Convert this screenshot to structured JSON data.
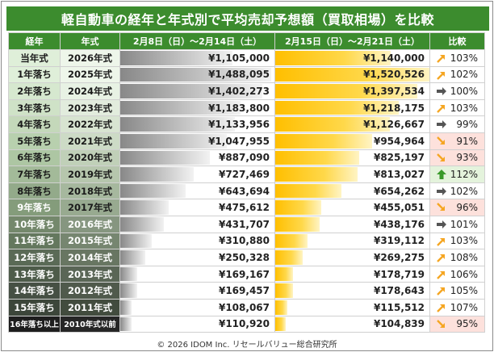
{
  "title": "軽自動車の経年と年式別で平均売却予想額（買取相場）を比較",
  "chart_data": {
    "type": "table",
    "columns": [
      "経年",
      "年式",
      "2月8日（日）～2月14日（土）",
      "2月15日（日）～2月21日（土）",
      "比較"
    ],
    "rows": [
      {
        "age": "当年式",
        "year": "2026年式",
        "p1": 1105000,
        "p2": 1140000,
        "p1_label": "¥1,105,000",
        "p2_label": "¥1,140,000",
        "ratio": "103%",
        "trend": "up"
      },
      {
        "age": "1年落ち",
        "year": "2025年式",
        "p1": 1488095,
        "p2": 1520526,
        "p1_label": "¥1,488,095",
        "p2_label": "¥1,520,526",
        "ratio": "102%",
        "trend": "up"
      },
      {
        "age": "2年落ち",
        "year": "2024年式",
        "p1": 1402273,
        "p2": 1397534,
        "p1_label": "¥1,402,273",
        "p2_label": "¥1,397,534",
        "ratio": "100%",
        "trend": "flat"
      },
      {
        "age": "3年落ち",
        "year": "2023年式",
        "p1": 1183800,
        "p2": 1218175,
        "p1_label": "¥1,183,800",
        "p2_label": "¥1,218,175",
        "ratio": "103%",
        "trend": "up"
      },
      {
        "age": "4年落ち",
        "year": "2022年式",
        "p1": 1133956,
        "p2": 1126667,
        "p1_label": "¥1,133,956",
        "p2_label": "¥1,126,667",
        "ratio": "99%",
        "trend": "flat"
      },
      {
        "age": "5年落ち",
        "year": "2021年式",
        "p1": 1047955,
        "p2": 954964,
        "p1_label": "¥1,047,955",
        "p2_label": "¥954,964",
        "ratio": "91%",
        "trend": "down"
      },
      {
        "age": "6年落ち",
        "year": "2020年式",
        "p1": 887090,
        "p2": 825197,
        "p1_label": "¥887,090",
        "p2_label": "¥825,197",
        "ratio": "93%",
        "trend": "down"
      },
      {
        "age": "7年落ち",
        "year": "2019年式",
        "p1": 727469,
        "p2": 813027,
        "p1_label": "¥727,469",
        "p2_label": "¥813,027",
        "ratio": "112%",
        "trend": "big-up"
      },
      {
        "age": "8年落ち",
        "year": "2018年式",
        "p1": 643694,
        "p2": 654262,
        "p1_label": "¥643,694",
        "p2_label": "¥654,262",
        "ratio": "102%",
        "trend": "flat"
      },
      {
        "age": "9年落ち",
        "year": "2017年式",
        "p1": 475612,
        "p2": 455051,
        "p1_label": "¥475,612",
        "p2_label": "¥455,051",
        "ratio": "96%",
        "trend": "down"
      },
      {
        "age": "10年落ち",
        "year": "2016年式",
        "p1": 431707,
        "p2": 438176,
        "p1_label": "¥431,707",
        "p2_label": "¥438,176",
        "ratio": "101%",
        "trend": "flat"
      },
      {
        "age": "11年落ち",
        "year": "2015年式",
        "p1": 310880,
        "p2": 319112,
        "p1_label": "¥310,880",
        "p2_label": "¥319,112",
        "ratio": "103%",
        "trend": "up"
      },
      {
        "age": "12年落ち",
        "year": "2014年式",
        "p1": 250328,
        "p2": 269275,
        "p1_label": "¥250,328",
        "p2_label": "¥269,275",
        "ratio": "108%",
        "trend": "up"
      },
      {
        "age": "13年落ち",
        "year": "2013年式",
        "p1": 169167,
        "p2": 178719,
        "p1_label": "¥169,167",
        "p2_label": "¥178,719",
        "ratio": "106%",
        "trend": "up"
      },
      {
        "age": "14年落ち",
        "year": "2012年式",
        "p1": 169457,
        "p2": 178643,
        "p1_label": "¥169,457",
        "p2_label": "¥178,643",
        "ratio": "105%",
        "trend": "up"
      },
      {
        "age": "15年落ち",
        "year": "2011年式",
        "p1": 108067,
        "p2": 115512,
        "p1_label": "¥108,067",
        "p2_label": "¥115,512",
        "ratio": "107%",
        "trend": "up"
      },
      {
        "age": "16年落ち以上",
        "year": "2010年式以前",
        "p1": 110920,
        "p2": 104839,
        "p1_label": "¥110,920",
        "p2_label": "¥104,839",
        "ratio": "95%",
        "trend": "down"
      }
    ],
    "bar_max": 1520526
  },
  "colors": {
    "header": "#3c8c2e",
    "up_arrow": "#f5a623",
    "flat_arrow": "#555555",
    "down_arrow": "#f5a623",
    "big_up_arrow": "#3a9a2a",
    "down_bg": "#fde1dc",
    "big_up_bg": "#e4f3dc"
  },
  "footer": "© 2026 IDOM Inc. リセールバリュー総合研究所"
}
